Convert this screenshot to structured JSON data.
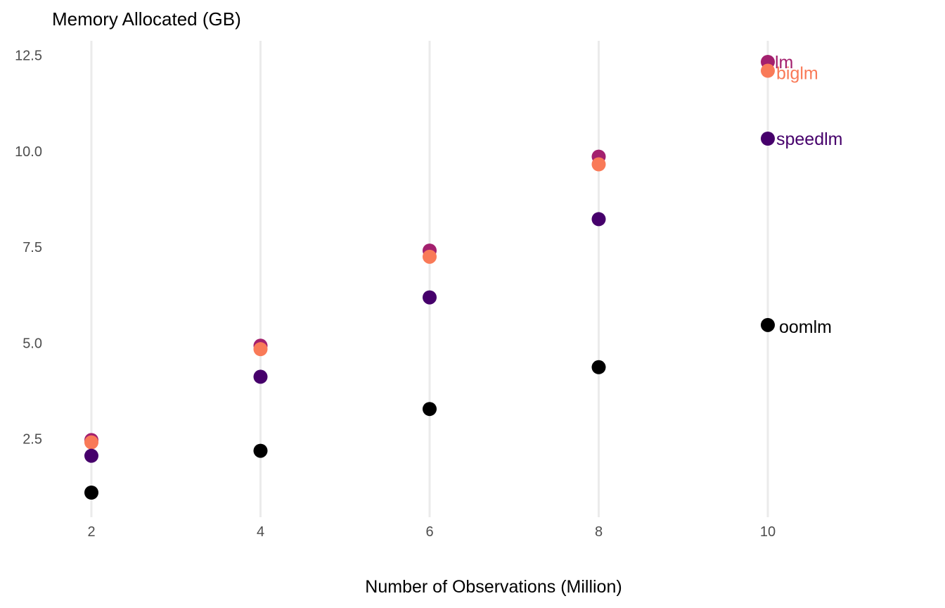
{
  "chart_data": {
    "type": "scatter",
    "title": "Memory Allocated (GB)",
    "xlabel": "Number of Observations (Million)",
    "ylabel": "",
    "x": [
      2,
      4,
      6,
      8,
      10
    ],
    "xlim": [
      2,
      10
    ],
    "ylim": [
      0.6,
      12.9
    ],
    "x_ticks": [
      2,
      4,
      6,
      8,
      10
    ],
    "x_tick_labels": [
      "2",
      "4",
      "6",
      "8",
      "10"
    ],
    "y_ticks": [
      2.5,
      5.0,
      7.5,
      10.0,
      12.5
    ],
    "y_tick_labels": [
      "2.5",
      "5.0",
      "7.5",
      "10.0",
      "12.5"
    ],
    "grid": "vertical major lines only",
    "legend": "direct labels at x = 10",
    "series": [
      {
        "name": "lm",
        "color": "#a3206e",
        "values": [
          2.47,
          4.93,
          7.41,
          9.86,
          12.33
        ]
      },
      {
        "name": "biglm",
        "color": "#f97a58",
        "values": [
          2.41,
          4.84,
          7.25,
          9.66,
          12.1
        ]
      },
      {
        "name": "speedlm",
        "color": "#46006b",
        "values": [
          2.06,
          4.12,
          6.19,
          8.23,
          10.33
        ]
      },
      {
        "name": "oomlm",
        "color": "#000000",
        "values": [
          1.1,
          2.19,
          3.28,
          4.37,
          5.47
        ]
      }
    ]
  }
}
